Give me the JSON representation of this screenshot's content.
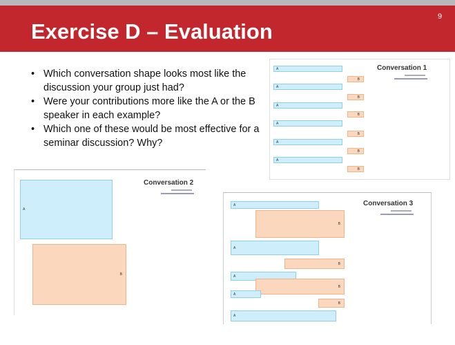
{
  "header": {
    "title": "Exercise D – Evaluation",
    "page_number": "9"
  },
  "bullets": [
    "Which conversation shape looks most like the discussion your group just had?",
    "Were your contributions more like the A or the B speaker in each example?",
    "Which one of these would be most effective for a seminar discussion? Why?"
  ],
  "thumbnails": [
    {
      "title": "Conversation 1",
      "labels": [
        "A",
        "B",
        "A",
        "B",
        "A",
        "B",
        "A",
        "B",
        "A",
        "B",
        "A",
        "B"
      ]
    },
    {
      "title": "Conversation 2",
      "labels": [
        "A",
        "B"
      ]
    },
    {
      "title": "Conversation 3",
      "labels": [
        "A",
        "B",
        "A",
        "B",
        "A",
        "B",
        "A",
        "B",
        "A"
      ]
    }
  ]
}
